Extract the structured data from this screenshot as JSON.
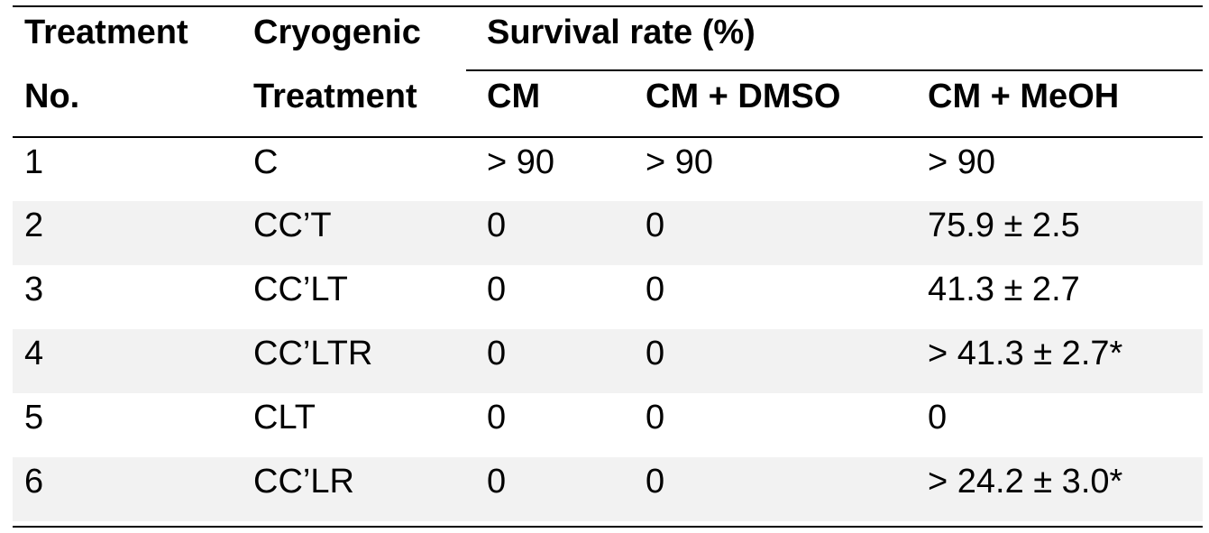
{
  "chart_data": {
    "type": "table",
    "header": {
      "col1_line1": "Treatment",
      "col1_line2": "No.",
      "col2_line1": "Cryogenic",
      "col2_line2": "Treatment",
      "group_label": "Survival rate (%)",
      "sub_cm": "CM",
      "sub_dmso": "CM + DMSO",
      "sub_meoh": "CM + MeOH"
    },
    "columns": [
      "Treatment No.",
      "Cryogenic Treatment",
      "CM",
      "CM + DMSO",
      "CM + MeOH"
    ],
    "rows": [
      [
        "1",
        "C",
        "> 90",
        "> 90",
        "> 90"
      ],
      [
        "2",
        "CC’T",
        "0",
        "0",
        "75.9 ± 2.5"
      ],
      [
        "3",
        "CC’LT",
        "0",
        "0",
        "41.3 ± 2.7"
      ],
      [
        "4",
        "CC’LTR",
        "0",
        "0",
        "> 41.3 ± 2.7*"
      ],
      [
        "5",
        "CLT",
        "0",
        "0",
        "0"
      ],
      [
        "6",
        "CC’LR",
        "0",
        "0",
        "> 24.2 ± 3.0*"
      ]
    ],
    "shaded_rows": [
      2,
      4,
      6
    ]
  }
}
